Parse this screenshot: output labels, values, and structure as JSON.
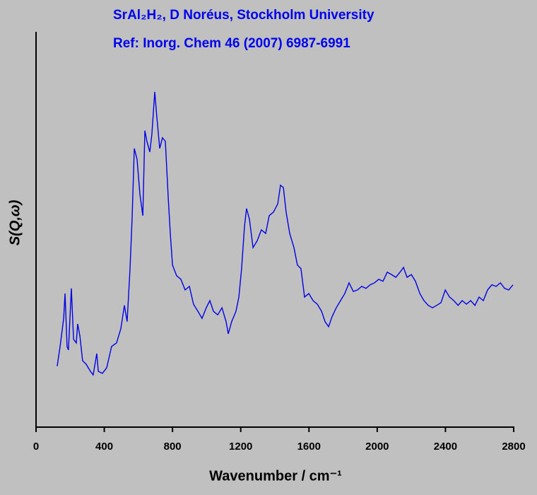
{
  "chart_data": {
    "type": "line",
    "title": "SrAl₂H₂, D Noréus, Stockholm University",
    "subtitle": "Ref: Inorg. Chem 46 (2007) 6987-6991",
    "x_label": "Wavenumber / cm⁻¹",
    "y_label": "S(Q,ω)",
    "xlim": [
      0,
      2800
    ],
    "xticks": [
      0,
      400,
      800,
      1200,
      1600,
      2000,
      2400,
      2800
    ],
    "ylim": [
      0,
      100
    ],
    "x": [
      124,
      141,
      162,
      170,
      182,
      190,
      207,
      220,
      236,
      244,
      257,
      273,
      294,
      319,
      335,
      356,
      365,
      389,
      414,
      443,
      472,
      497,
      518,
      534,
      551,
      563,
      576,
      592,
      609,
      626,
      638,
      650,
      667,
      679,
      696,
      708,
      725,
      741,
      758,
      775,
      787,
      800,
      824,
      849,
      874,
      899,
      923,
      949,
      973,
      998,
      1019,
      1040,
      1065,
      1090,
      1114,
      1127,
      1147,
      1172,
      1189,
      1205,
      1222,
      1234,
      1251,
      1272,
      1297,
      1321,
      1346,
      1367,
      1392,
      1417,
      1433,
      1450,
      1466,
      1487,
      1512,
      1532,
      1553,
      1574,
      1599,
      1624,
      1649,
      1674,
      1694,
      1715,
      1735,
      1760,
      1785,
      1810,
      1835,
      1860,
      1884,
      1909,
      1934,
      1959,
      1984,
      2009,
      2034,
      2059,
      2084,
      2109,
      2134,
      2154,
      2175,
      2200,
      2224,
      2250,
      2274,
      2299,
      2324,
      2349,
      2374,
      2399,
      2424,
      2449,
      2474,
      2498,
      2523,
      2548,
      2573,
      2597,
      2622,
      2647,
      2672,
      2697,
      2722,
      2747,
      2771,
      2796
    ],
    "series": [
      {
        "color": "#0000e6",
        "values": [
          15.4,
          20.4,
          27.5,
          33.8,
          20.4,
          19.5,
          35.1,
          22.2,
          21.3,
          26.1,
          23.1,
          16.8,
          15.9,
          14.1,
          13.2,
          18.6,
          14.1,
          13.6,
          15.0,
          20.4,
          21.3,
          24.9,
          30.8,
          26.7,
          40.1,
          52.6,
          70.5,
          67.8,
          58.9,
          53.5,
          75.0,
          72.3,
          69.6,
          74.1,
          84.8,
          78.5,
          70.5,
          73.2,
          72.3,
          58.0,
          49.0,
          41.0,
          38.3,
          37.4,
          34.7,
          35.6,
          31.1,
          29.3,
          27.5,
          30.2,
          32.0,
          29.3,
          28.4,
          30.2,
          26.7,
          23.6,
          26.7,
          29.3,
          32.9,
          40.1,
          50.8,
          55.3,
          52.6,
          45.4,
          47.2,
          49.9,
          49.0,
          53.5,
          54.4,
          56.5,
          61.2,
          60.6,
          54.4,
          49.0,
          45.4,
          41.0,
          40.1,
          32.9,
          33.8,
          32.0,
          31.1,
          29.3,
          26.7,
          25.4,
          27.9,
          30.2,
          32.0,
          33.8,
          36.5,
          34.3,
          34.7,
          35.6,
          35.1,
          36.0,
          36.5,
          37.4,
          36.9,
          39.2,
          38.6,
          37.9,
          39.2,
          40.4,
          37.9,
          38.6,
          36.9,
          33.8,
          32.0,
          30.8,
          30.2,
          30.8,
          31.5,
          34.7,
          32.9,
          32.0,
          30.8,
          32.0,
          31.1,
          32.0,
          30.8,
          32.9,
          32.0,
          34.7,
          36.0,
          35.6,
          36.5,
          35.1,
          34.7,
          36.0
        ]
      }
    ]
  }
}
